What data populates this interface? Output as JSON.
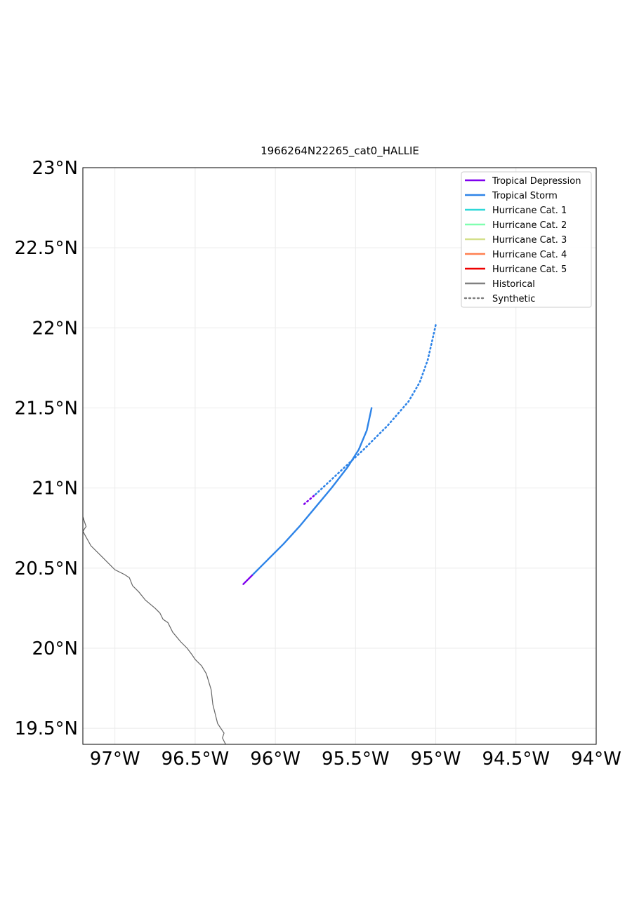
{
  "title": "1966264N22265_cat0_HALLIE",
  "chart_data": {
    "type": "line",
    "title": "1966264N22265_cat0_HALLIE",
    "xlabel": "",
    "ylabel": "",
    "xlim": [
      -97.2,
      -94.0
    ],
    "ylim": [
      19.4,
      23.0
    ],
    "grid": true,
    "legend_position": "top-right",
    "x_ticks": [
      {
        "value": -97.0,
        "label": "97°W"
      },
      {
        "value": -96.5,
        "label": "96.5°W"
      },
      {
        "value": -96.0,
        "label": "96°W"
      },
      {
        "value": -95.5,
        "label": "95.5°W"
      },
      {
        "value": -95.0,
        "label": "95°W"
      },
      {
        "value": -94.5,
        "label": "94.5°W"
      },
      {
        "value": -94.0,
        "label": "94°W"
      }
    ],
    "y_ticks": [
      {
        "value": 19.5,
        "label": "19.5°N"
      },
      {
        "value": 20.0,
        "label": "20°N"
      },
      {
        "value": 20.5,
        "label": "20.5°N"
      },
      {
        "value": 21.0,
        "label": "21°N"
      },
      {
        "value": 21.5,
        "label": "21.5°N"
      },
      {
        "value": 22.0,
        "label": "22°N"
      },
      {
        "value": 22.5,
        "label": "22.5°N"
      },
      {
        "value": 23.0,
        "label": "23°N"
      }
    ],
    "legend": [
      {
        "label": "Tropical Depression",
        "color": "#7f00ee",
        "style": "solid"
      },
      {
        "label": "Tropical Storm",
        "color": "#2e84e8",
        "style": "solid"
      },
      {
        "label": "Hurricane Cat. 1",
        "color": "#2ed8d8",
        "style": "solid"
      },
      {
        "label": "Hurricane Cat. 2",
        "color": "#80ffb0",
        "style": "solid"
      },
      {
        "label": "Hurricane Cat. 3",
        "color": "#d4e08a",
        "style": "solid"
      },
      {
        "label": "Hurricane Cat. 4",
        "color": "#ff8050",
        "style": "solid"
      },
      {
        "label": "Hurricane Cat. 5",
        "color": "#ee0000",
        "style": "solid"
      },
      {
        "label": "Historical",
        "color": "#808080",
        "style": "solid"
      },
      {
        "label": "Synthetic",
        "color": "#808080",
        "style": "dotted"
      }
    ],
    "coastline": [
      [
        -97.2,
        20.82
      ],
      [
        -97.18,
        20.76
      ],
      [
        -97.2,
        20.73
      ],
      [
        -97.15,
        20.64
      ],
      [
        -97.08,
        20.57
      ],
      [
        -97.03,
        20.52
      ],
      [
        -97.0,
        20.49
      ],
      [
        -96.94,
        20.46
      ],
      [
        -96.91,
        20.44
      ],
      [
        -96.89,
        20.39
      ],
      [
        -96.85,
        20.35
      ],
      [
        -96.81,
        20.3
      ],
      [
        -96.75,
        20.25
      ],
      [
        -96.72,
        20.22
      ],
      [
        -96.7,
        20.18
      ],
      [
        -96.67,
        20.16
      ],
      [
        -96.64,
        20.1
      ],
      [
        -96.59,
        20.04
      ],
      [
        -96.55,
        20.0
      ],
      [
        -96.52,
        19.96
      ],
      [
        -96.5,
        19.93
      ],
      [
        -96.46,
        19.89
      ],
      [
        -96.43,
        19.84
      ],
      [
        -96.4,
        19.74
      ],
      [
        -96.39,
        19.65
      ],
      [
        -96.36,
        19.53
      ],
      [
        -96.32,
        19.47
      ],
      [
        -96.33,
        19.44
      ],
      [
        -96.31,
        19.4
      ]
    ],
    "series": [
      {
        "kind": "historical",
        "segments": [
          {
            "category": "Tropical Depression",
            "points": [
              [
                -96.2,
                20.4
              ],
              [
                -96.14,
                20.46
              ]
            ]
          },
          {
            "category": "Tropical Storm",
            "points": [
              [
                -96.14,
                20.46
              ],
              [
                -96.05,
                20.55
              ],
              [
                -95.95,
                20.65
              ],
              [
                -95.85,
                20.76
              ],
              [
                -95.75,
                20.88
              ],
              [
                -95.65,
                21.0
              ],
              [
                -95.55,
                21.13
              ],
              [
                -95.48,
                21.24
              ],
              [
                -95.43,
                21.36
              ],
              [
                -95.4,
                21.5
              ]
            ]
          }
        ]
      },
      {
        "kind": "synthetic",
        "segments": [
          {
            "category": "Tropical Depression",
            "points": [
              [
                -95.82,
                20.9
              ],
              [
                -95.75,
                20.96
              ]
            ]
          },
          {
            "category": "Tropical Storm",
            "points": [
              [
                -95.75,
                20.96
              ],
              [
                -95.6,
                21.1
              ],
              [
                -95.45,
                21.24
              ],
              [
                -95.3,
                21.39
              ],
              [
                -95.17,
                21.54
              ],
              [
                -95.1,
                21.66
              ],
              [
                -95.05,
                21.8
              ],
              [
                -95.02,
                21.93
              ],
              [
                -95.0,
                22.02
              ]
            ]
          }
        ]
      }
    ]
  }
}
